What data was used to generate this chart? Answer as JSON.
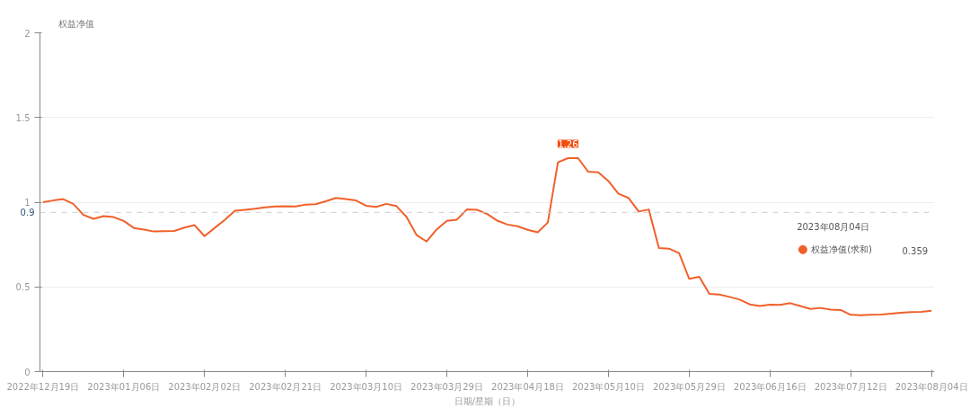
{
  "chart_data": {
    "type": "line",
    "ylabel": "权益净值",
    "xlabel": "日期/星期（日）",
    "categories": [
      "2022年12月19日",
      null,
      null,
      null,
      null,
      null,
      null,
      null,
      "2023年01月06日",
      null,
      null,
      null,
      null,
      null,
      null,
      null,
      "2023年02月02日",
      null,
      null,
      null,
      null,
      null,
      null,
      null,
      "2023年02月21日",
      null,
      null,
      null,
      null,
      null,
      null,
      null,
      "2023年03月10日",
      null,
      null,
      null,
      null,
      null,
      null,
      null,
      "2023年03月29日",
      null,
      null,
      null,
      null,
      null,
      null,
      null,
      "2023年04月18日",
      null,
      null,
      null,
      null,
      null,
      null,
      null,
      "2023年05月10日",
      null,
      null,
      null,
      null,
      null,
      null,
      null,
      "2023年05月29日",
      null,
      null,
      null,
      null,
      null,
      null,
      null,
      "2023年06月16日",
      null,
      null,
      null,
      null,
      null,
      null,
      null,
      "2023年07月12日",
      null,
      null,
      null,
      null,
      null,
      null,
      null,
      "2023年08月04日"
    ],
    "series": [
      {
        "name": "权益净值(求和)",
        "color": "#f0602a",
        "values": [
          1.0,
          1.01,
          1.018,
          0.99,
          0.925,
          0.902,
          0.918,
          0.912,
          0.889,
          0.848,
          0.838,
          0.827,
          0.829,
          0.83,
          0.85,
          0.865,
          0.8,
          0.848,
          0.895,
          0.95,
          0.955,
          0.961,
          0.97,
          0.975,
          0.976,
          0.975,
          0.986,
          0.988,
          1.005,
          1.025,
          1.018,
          1.01,
          0.979,
          0.972,
          0.99,
          0.977,
          0.914,
          0.806,
          0.768,
          0.84,
          0.89,
          0.897,
          0.958,
          0.955,
          0.93,
          0.891,
          0.868,
          0.858,
          0.837,
          0.822,
          0.88,
          1.235,
          1.26,
          1.26,
          1.18,
          1.176,
          1.125,
          1.05,
          1.025,
          0.945,
          0.957,
          0.73,
          0.726,
          0.7,
          0.548,
          0.56,
          0.459,
          0.455,
          0.441,
          0.425,
          0.397,
          0.387,
          0.395,
          0.394,
          0.404,
          0.387,
          0.37,
          0.376,
          0.366,
          0.364,
          0.335,
          0.333,
          0.335,
          0.337,
          0.342,
          0.347,
          0.351,
          0.353,
          0.359
        ]
      }
    ],
    "ylim": [
      0,
      2
    ],
    "yticks": [
      0,
      0.5,
      1,
      1.5,
      2
    ],
    "grid": "y",
    "legend": "right",
    "marker": "none",
    "line_style": "solid",
    "ref_lines": [
      {
        "axis": "y",
        "value": 0.94,
        "label": "0.9",
        "color": "#cccccc",
        "line_style": "dashed"
      }
    ],
    "annotations": [
      {
        "text": "1.26",
        "y": 1.26
      },
      "2023年08月04日",
      "0.359"
    ]
  }
}
